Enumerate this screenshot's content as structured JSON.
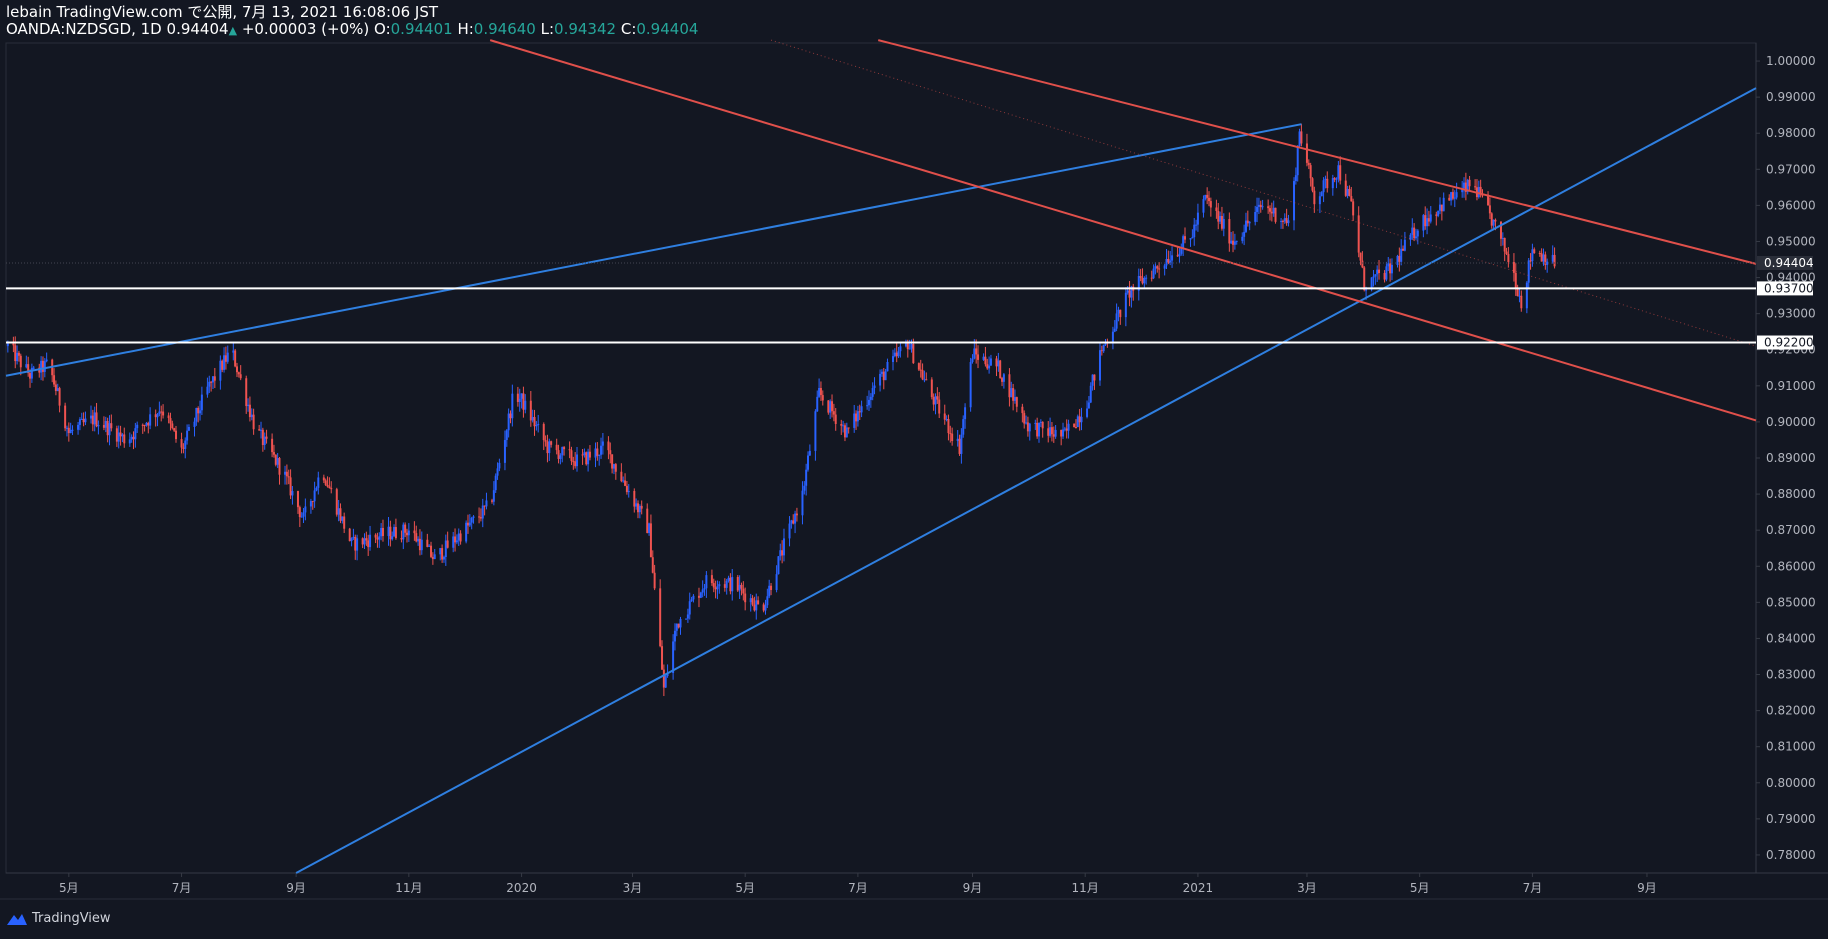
{
  "header": {
    "line1": "lebain TradingView.com で公開, 7月 13, 2021 16:08:06 JST",
    "symbol": "OANDA:NZDSGD, 1D",
    "last": "0.94404",
    "change": "+0.00003 (+0%)",
    "o_label": "O:",
    "o_val": "0.94401",
    "h_label": "H:",
    "h_val": "0.94640",
    "l_label": "L:",
    "l_val": "0.94342",
    "c_label": "C:",
    "c_val": "0.94404"
  },
  "footer": {
    "brand": "TradingView"
  },
  "colors": {
    "background": "#131722",
    "up": "#2962ff",
    "down": "#ef5350",
    "channel_up": "#2f7fe0",
    "channel_down": "#e0504b",
    "level": "#ffffff"
  },
  "chart_data": {
    "type": "candlestick",
    "symbol": "OANDA:NZDSGD",
    "interval": "1D",
    "ylim": [
      0.775,
      1.005
    ],
    "y_ticks": [
      "1.00000",
      "0.99000",
      "0.98000",
      "0.97000",
      "0.96000",
      "0.95000",
      "0.94000",
      "0.93000",
      "0.92000",
      "0.91000",
      "0.90000",
      "0.89000",
      "0.88000",
      "0.87000",
      "0.86000",
      "0.85000",
      "0.84000",
      "0.83000",
      "0.82000",
      "0.81000",
      "0.80000",
      "0.79000",
      "0.78000"
    ],
    "x_ticks": [
      "5月",
      "7月",
      "9月",
      "11月",
      "2020",
      "3月",
      "5月",
      "7月",
      "9月",
      "11月",
      "2021",
      "3月",
      "5月",
      "7月",
      "9月"
    ],
    "x_tick_dates": [
      "2019-05-01",
      "2019-07-01",
      "2019-09-01",
      "2019-11-01",
      "2020-01-01",
      "2020-03-01",
      "2020-05-01",
      "2020-07-01",
      "2020-09-01",
      "2020-11-01",
      "2021-01-01",
      "2021-03-01",
      "2021-05-01",
      "2021-07-01",
      "2021-09-01"
    ],
    "x_range": [
      "2019-03-28",
      "2021-10-30"
    ],
    "close_path": [
      [
        "2019-03-29",
        0.921
      ],
      [
        "2019-04-10",
        0.913
      ],
      [
        "2019-04-20",
        0.916
      ],
      [
        "2019-05-01",
        0.897
      ],
      [
        "2019-05-15",
        0.901
      ],
      [
        "2019-06-01",
        0.895
      ],
      [
        "2019-06-20",
        0.904
      ],
      [
        "2019-07-01",
        0.892
      ],
      [
        "2019-07-15",
        0.909
      ],
      [
        "2019-07-28",
        0.92
      ],
      [
        "2019-08-10",
        0.898
      ],
      [
        "2019-08-25",
        0.886
      ],
      [
        "2019-09-05",
        0.873
      ],
      [
        "2019-09-15",
        0.887
      ],
      [
        "2019-10-01",
        0.866
      ],
      [
        "2019-10-20",
        0.869
      ],
      [
        "2019-11-01",
        0.87
      ],
      [
        "2019-11-15",
        0.862
      ],
      [
        "2019-12-01",
        0.87
      ],
      [
        "2019-12-15",
        0.877
      ],
      [
        "2019-12-28",
        0.908
      ],
      [
        "2020-01-01",
        0.906
      ],
      [
        "2020-01-15",
        0.893
      ],
      [
        "2020-02-01",
        0.889
      ],
      [
        "2020-02-15",
        0.893
      ],
      [
        "2020-03-01",
        0.879
      ],
      [
        "2020-03-10",
        0.87
      ],
      [
        "2020-03-18",
        0.826
      ],
      [
        "2020-03-25",
        0.844
      ],
      [
        "2020-04-10",
        0.856
      ],
      [
        "2020-04-25",
        0.855
      ],
      [
        "2020-05-10",
        0.848
      ],
      [
        "2020-05-25",
        0.87
      ],
      [
        "2020-06-01",
        0.88
      ],
      [
        "2020-06-10",
        0.908
      ],
      [
        "2020-06-25",
        0.897
      ],
      [
        "2020-07-10",
        0.91
      ],
      [
        "2020-07-28",
        0.922
      ],
      [
        "2020-08-10",
        0.907
      ],
      [
        "2020-08-25",
        0.893
      ],
      [
        "2020-09-01",
        0.919
      ],
      [
        "2020-09-15",
        0.915
      ],
      [
        "2020-10-01",
        0.899
      ],
      [
        "2020-10-20",
        0.896
      ],
      [
        "2020-11-01",
        0.904
      ],
      [
        "2020-11-10",
        0.92
      ],
      [
        "2020-11-25",
        0.936
      ],
      [
        "2020-12-10",
        0.943
      ],
      [
        "2020-12-28",
        0.951
      ],
      [
        "2021-01-05",
        0.962
      ],
      [
        "2021-01-20",
        0.95
      ],
      [
        "2021-02-05",
        0.96
      ],
      [
        "2021-02-20",
        0.955
      ],
      [
        "2021-02-25",
        0.981
      ],
      [
        "2021-03-05",
        0.962
      ],
      [
        "2021-03-18",
        0.97
      ],
      [
        "2021-03-25",
        0.96
      ],
      [
        "2021-04-01",
        0.938
      ],
      [
        "2021-04-15",
        0.942
      ],
      [
        "2021-05-01",
        0.955
      ],
      [
        "2021-05-15",
        0.961
      ],
      [
        "2021-05-30",
        0.966
      ],
      [
        "2021-06-10",
        0.955
      ],
      [
        "2021-06-20",
        0.943
      ],
      [
        "2021-06-25",
        0.933
      ],
      [
        "2021-07-01",
        0.948
      ],
      [
        "2021-07-13",
        0.944
      ]
    ],
    "trendlines": [
      {
        "color": "#2f7fe0",
        "p1": [
          "2019-03-28",
          0.9128
        ],
        "p2": [
          "2021-02-26",
          0.9825
        ]
      },
      {
        "color": "#2f7fe0",
        "p1": [
          "2019-09-01",
          0.775
        ],
        "p2": [
          "2021-10-30",
          0.9925
        ]
      },
      {
        "color": "#e0504b",
        "p1": [
          "2019-12-15",
          1.0058
        ],
        "p2": [
          "2021-10-30",
          0.9004
        ]
      },
      {
        "color": "#e0504b",
        "p1": [
          "2020-07-12",
          1.0058
        ],
        "p2": [
          "2021-10-30",
          0.9438
        ]
      }
    ],
    "horizontal_levels": [
      {
        "value": 0.937,
        "label": "0.93700"
      },
      {
        "value": 0.922,
        "label": "0.92200"
      }
    ],
    "last_price": {
      "value": 0.94404,
      "label": "0.94404"
    }
  }
}
